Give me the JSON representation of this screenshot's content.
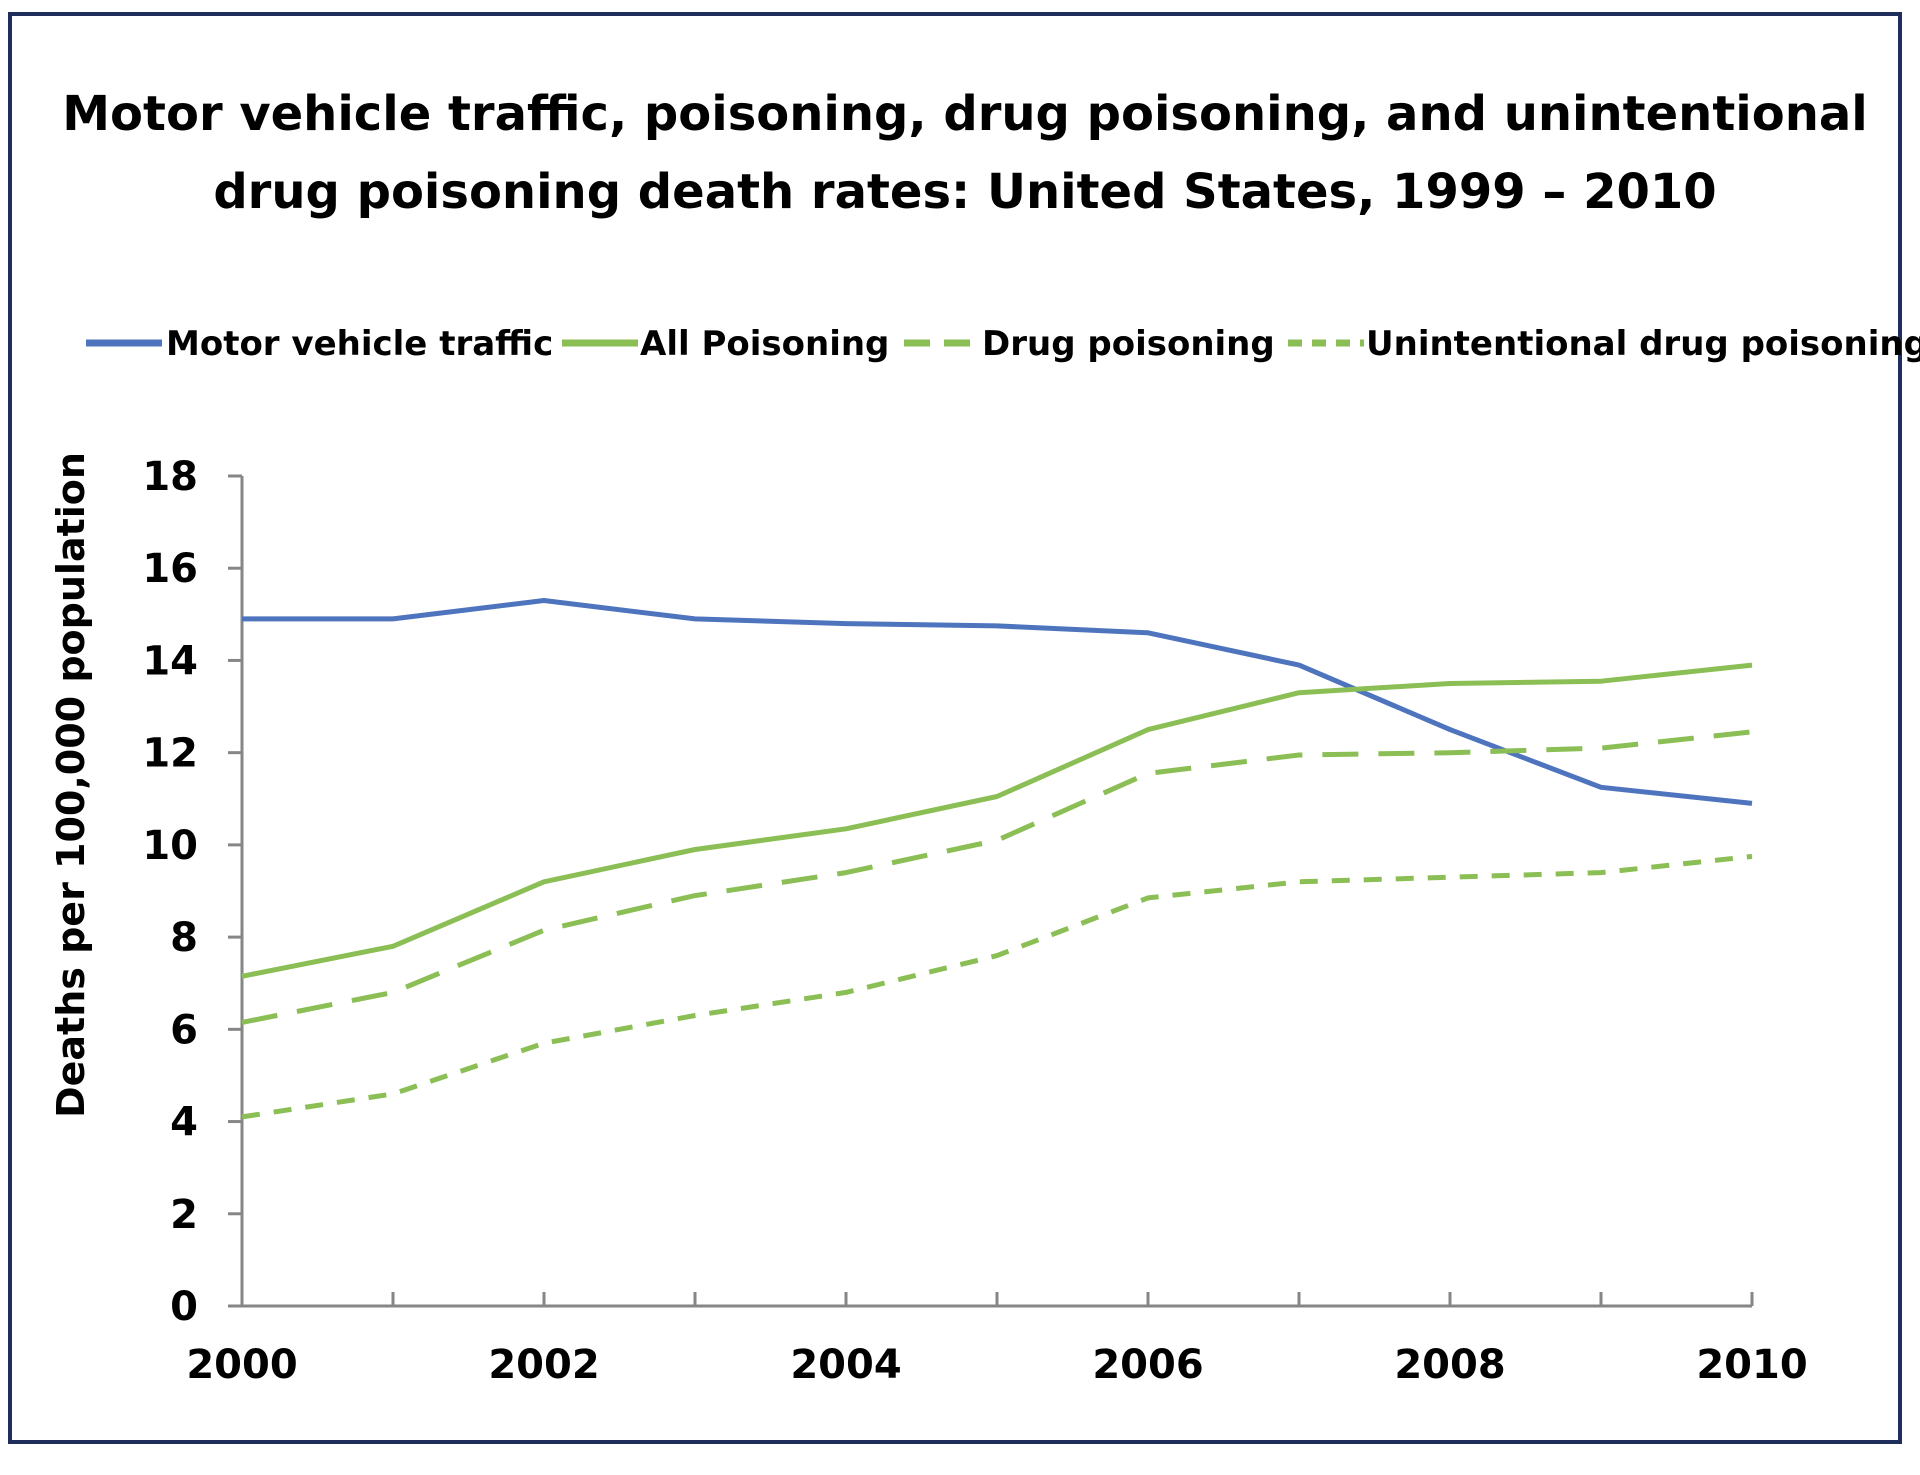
{
  "chart_data": {
    "type": "line",
    "title_lines": [
      "Motor vehicle traffic, poisoning, drug poisoning, and unintentional",
      "drug poisoning death rates: United States, 1999 – 2010"
    ],
    "xlabel": "",
    "ylabel": "Deaths per 100,000 population",
    "x": [
      2000,
      2001,
      2002,
      2003,
      2004,
      2005,
      2006,
      2007,
      2008,
      2009,
      2010
    ],
    "xlim": [
      2000,
      2010
    ],
    "ylim": [
      0,
      18
    ],
    "x_ticks": [
      2000,
      2002,
      2004,
      2006,
      2008,
      2010
    ],
    "y_ticks": [
      0,
      2,
      4,
      6,
      8,
      10,
      12,
      14,
      16,
      18
    ],
    "grid": false,
    "legend_position": "top",
    "series": [
      {
        "name": "Motor vehicle traffic",
        "color": "#4f74be",
        "dash": "solid",
        "values": [
          14.9,
          14.9,
          15.3,
          14.9,
          14.8,
          14.75,
          14.6,
          13.9,
          12.5,
          11.25,
          10.9
        ]
      },
      {
        "name": "All Poisoning",
        "color": "#8bbf55",
        "dash": "solid",
        "values": [
          7.15,
          7.8,
          9.2,
          9.9,
          10.35,
          11.05,
          12.5,
          13.3,
          13.5,
          13.55,
          13.9
        ]
      },
      {
        "name": "Drug poisoning",
        "color": "#8bbf55",
        "dash": "long-dash",
        "values": [
          6.15,
          6.8,
          8.15,
          8.9,
          9.4,
          10.1,
          11.55,
          11.95,
          12.0,
          12.1,
          12.45
        ]
      },
      {
        "name": "Unintentional drug poisoning",
        "color": "#8bbf55",
        "dash": "short-dash",
        "values": [
          4.1,
          4.6,
          5.7,
          6.3,
          6.8,
          7.6,
          8.85,
          9.2,
          9.3,
          9.4,
          9.75
        ]
      }
    ]
  },
  "frame": {
    "border_color": "#1f2d5c",
    "axis_color": "#868686"
  }
}
